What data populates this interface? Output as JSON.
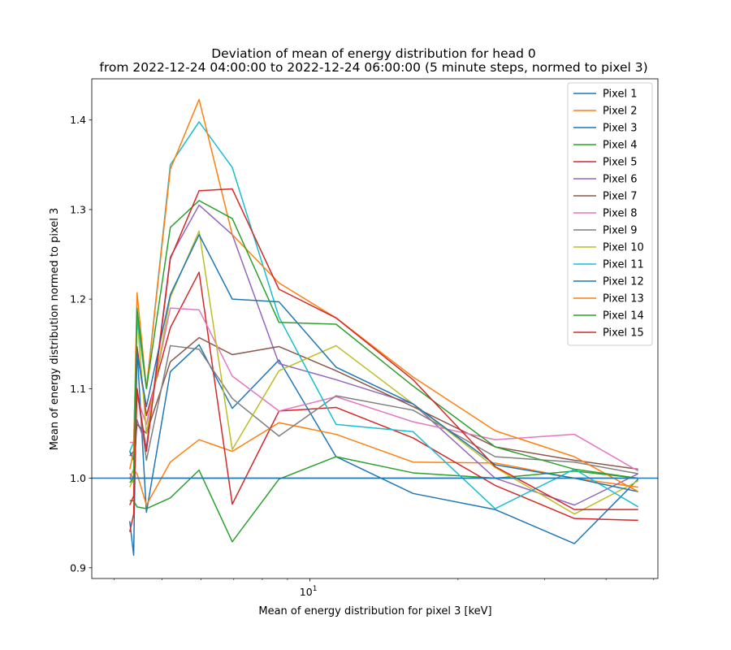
{
  "chart_data": {
    "type": "line",
    "title": "Deviation of mean of energy distribution for head 0",
    "subtitle": "from 2022-12-24 04:00:00 to 2022-12-24 06:00:00 (5 minute steps, normed to pixel 3)",
    "xlabel": "Mean of energy distribution for pixel 3 [keV]",
    "ylabel": "Mean of energy distribution normed to pixel 3",
    "xscale": "log",
    "xlim": [
      3.6,
      51
    ],
    "ylim": [
      0.888,
      1.446
    ],
    "x_major_ticks": [
      10
    ],
    "x_major_tick_labels": [
      "10^1"
    ],
    "x_minor_ticks": [
      4,
      5,
      6,
      7,
      8,
      9,
      20,
      30,
      40,
      50
    ],
    "y_ticks": [
      0.9,
      1.0,
      1.1,
      1.2,
      1.3,
      1.4
    ],
    "y_tick_labels": [
      "0.9",
      "1.0",
      "1.1",
      "1.2",
      "1.3",
      "1.4"
    ],
    "reference_line": 1.0,
    "reference_color": "#1f77b4",
    "grid": false,
    "legend_position": "top-right",
    "x": [
      4.3,
      4.38,
      4.45,
      4.65,
      5.2,
      5.95,
      6.95,
      8.65,
      11.3,
      16.2,
      23.8,
      34.5,
      46.5
    ],
    "series": [
      {
        "name": "Pixel 1",
        "color": "#1f77b4",
        "values": [
          0.952,
          0.914,
          1.145,
          0.962,
          1.119,
          1.149,
          1.078,
          1.132,
          1.024,
          0.983,
          0.965,
          0.927,
          0.999
        ]
      },
      {
        "name": "Pixel 2",
        "color": "#ff7f0e",
        "values": [
          1.0,
          1.01,
          1.005,
          0.97,
          1.018,
          1.043,
          1.03,
          1.062,
          1.049,
          1.018,
          1.017,
          1.0,
          0.99
        ]
      },
      {
        "name": "Pixel 3",
        "color": "#1f77b4",
        "values": [
          1.0,
          1.0,
          1.0,
          1.0,
          1.0,
          1.0,
          1.0,
          1.0,
          1.0,
          1.0,
          1.0,
          1.0,
          1.0
        ]
      },
      {
        "name": "Pixel 4",
        "color": "#2ca02c",
        "values": [
          0.975,
          0.975,
          0.968,
          0.966,
          0.978,
          1.009,
          0.929,
          0.999,
          1.024,
          1.006,
          1.0,
          1.008,
          1.0
        ]
      },
      {
        "name": "Pixel 5",
        "color": "#d62728",
        "values": [
          0.97,
          0.98,
          1.147,
          1.07,
          1.168,
          1.23,
          0.971,
          1.075,
          1.079,
          1.045,
          0.992,
          0.955,
          0.953
        ]
      },
      {
        "name": "Pixel 6",
        "color": "#9467bd",
        "values": [
          1.005,
          1.0,
          1.065,
          1.035,
          1.247,
          1.305,
          1.272,
          1.128,
          1.11,
          1.083,
          1.0,
          0.97,
          1.005
        ]
      },
      {
        "name": "Pixel 7",
        "color": "#8c564b",
        "values": [
          1.025,
          1.03,
          1.06,
          1.05,
          1.13,
          1.157,
          1.138,
          1.147,
          1.12,
          1.08,
          1.035,
          1.02,
          1.01
        ]
      },
      {
        "name": "Pixel 8",
        "color": "#e377c2",
        "values": [
          1.04,
          1.04,
          1.09,
          1.06,
          1.19,
          1.188,
          1.114,
          1.075,
          1.091,
          1.063,
          1.043,
          1.049,
          1.008
        ]
      },
      {
        "name": "Pixel 9",
        "color": "#7f7f7f",
        "values": [
          1.0,
          0.995,
          1.1,
          1.02,
          1.148,
          1.144,
          1.089,
          1.047,
          1.092,
          1.076,
          1.024,
          1.018,
          1.005
        ]
      },
      {
        "name": "Pixel 10",
        "color": "#bcbd22",
        "values": [
          0.99,
          1.0,
          1.18,
          1.05,
          1.202,
          1.276,
          1.032,
          1.12,
          1.148,
          1.083,
          1.012,
          0.96,
          0.997
        ]
      },
      {
        "name": "Pixel 11",
        "color": "#17becf",
        "values": [
          1.03,
          1.04,
          1.18,
          1.1,
          1.35,
          1.398,
          1.347,
          1.18,
          1.06,
          1.052,
          0.966,
          1.01,
          0.968
        ]
      },
      {
        "name": "Pixel 12",
        "color": "#1f77b4",
        "values": [
          1.03,
          1.02,
          1.14,
          1.08,
          1.205,
          1.272,
          1.2,
          1.197,
          1.124,
          1.083,
          1.015,
          1.0,
          0.985
        ]
      },
      {
        "name": "Pixel 13",
        "color": "#ff7f0e",
        "values": [
          1.01,
          1.03,
          1.207,
          1.1,
          1.345,
          1.423,
          1.272,
          1.218,
          1.179,
          1.113,
          1.053,
          1.024,
          0.985
        ]
      },
      {
        "name": "Pixel 14",
        "color": "#2ca02c",
        "values": [
          0.995,
          1.0,
          1.19,
          1.1,
          1.28,
          1.31,
          1.29,
          1.174,
          1.172,
          1.103,
          1.035,
          1.01,
          1.0
        ]
      },
      {
        "name": "Pixel 15",
        "color": "#d62728",
        "values": [
          0.94,
          0.96,
          1.1,
          1.03,
          1.245,
          1.321,
          1.323,
          1.211,
          1.179,
          1.11,
          1.013,
          0.965,
          0.965
        ]
      }
    ]
  }
}
